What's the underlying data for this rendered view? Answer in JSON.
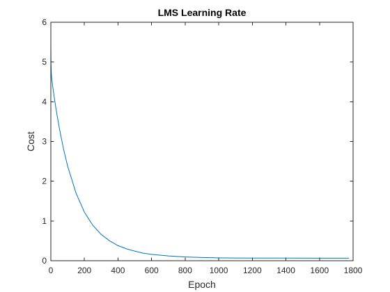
{
  "chart_data": {
    "type": "line",
    "title": "LMS Learning Rate",
    "xlabel": "Epoch",
    "ylabel": "Cost",
    "xlim": [
      0,
      1800
    ],
    "ylim": [
      0,
      6
    ],
    "xticks": [
      0,
      200,
      400,
      600,
      800,
      1000,
      1200,
      1400,
      1600,
      1800
    ],
    "yticks": [
      0,
      1,
      2,
      3,
      4,
      5,
      6
    ],
    "grid": false,
    "legend": "none",
    "series": [
      {
        "color": "#0072BD",
        "x": [
          0,
          1,
          3,
          5,
          10,
          20,
          30,
          50,
          75,
          100,
          150,
          200,
          250,
          300,
          350,
          400,
          450,
          500,
          550,
          600,
          700,
          800,
          900,
          1000,
          1100,
          1200,
          1400,
          1600,
          1776
        ],
        "y": [
          5.45,
          4.95,
          4.7,
          4.6,
          4.42,
          4.12,
          3.84,
          3.35,
          2.82,
          2.38,
          1.7,
          1.22,
          0.89,
          0.66,
          0.5,
          0.38,
          0.3,
          0.24,
          0.19,
          0.16,
          0.12,
          0.095,
          0.08,
          0.072,
          0.068,
          0.066,
          0.065,
          0.064,
          0.064
        ]
      }
    ]
  }
}
